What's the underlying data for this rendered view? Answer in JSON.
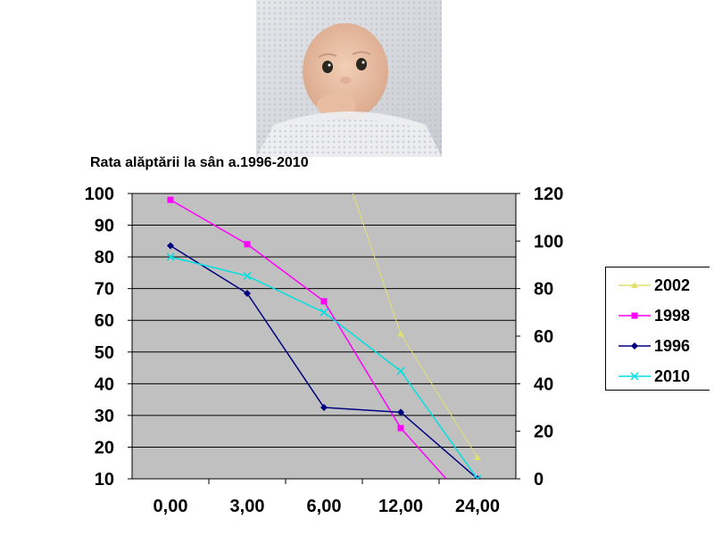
{
  "colors": {
    "plot_bg": "#c0c0c0",
    "grid": "#000000",
    "series_2002": "#e0e070",
    "series_1998": "#ff00ff",
    "series_1996": "#000080",
    "series_2010": "#00e0e0"
  },
  "photo": {
    "icon": "baby-photo-icon"
  },
  "chart_data": {
    "type": "line",
    "title": "Rata alăptării la sân a.1996-2010",
    "categories": [
      "0,00",
      "3,00",
      "6,00",
      "12,00",
      "24,00"
    ],
    "y_left": {
      "min": 10,
      "max": 100,
      "ticks": [
        10,
        20,
        30,
        40,
        50,
        60,
        70,
        80,
        90,
        100
      ]
    },
    "y_right": {
      "min": 0,
      "max": 120,
      "ticks": [
        0,
        20,
        40,
        60,
        80,
        100,
        120
      ]
    },
    "grid": true,
    "legend_position": "right",
    "series": [
      {
        "name": "2002",
        "axis": "right",
        "marker": "triangle",
        "values": [
          null,
          null,
          null,
          61,
          9
        ],
        "color_key": "series_2002"
      },
      {
        "name": "1998",
        "axis": "left",
        "marker": "square",
        "values": [
          98,
          84,
          66,
          26,
          null
        ],
        "color_key": "series_1998"
      },
      {
        "name": "1996",
        "axis": "left",
        "marker": "diamond",
        "values": [
          83.5,
          68.5,
          32.5,
          31,
          10
        ],
        "color_key": "series_1996"
      },
      {
        "name": "2010",
        "axis": "left",
        "marker": "cross",
        "values": [
          80,
          74,
          62.5,
          44,
          10
        ],
        "color_key": "series_2010"
      }
    ]
  }
}
